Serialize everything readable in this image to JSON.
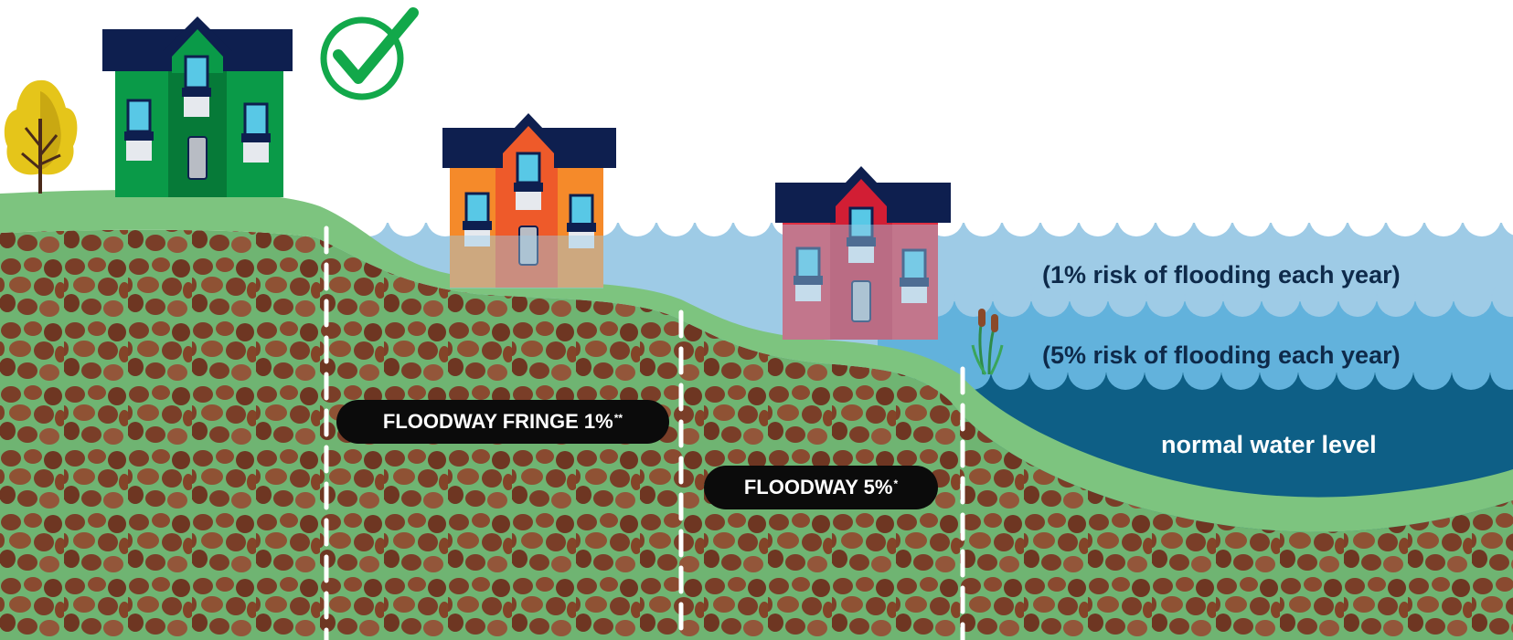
{
  "labels": {
    "floodway_fringe": "FLOODWAY FRINGE 1%",
    "floodway_fringe_mark": "**",
    "floodway": "FLOODWAY 5%",
    "floodway_mark": "*",
    "risk_1pct": "(1% risk of flooding each year)",
    "risk_5pct": "(5% risk of flooding each year)",
    "normal_water": "normal water level"
  },
  "houses": [
    {
      "name": "safe-house",
      "color": "#0a9a48",
      "state": "safe"
    },
    {
      "name": "fringe-house",
      "color": "#f58a2a",
      "state": "partially flooded"
    },
    {
      "name": "floodway-house",
      "color": "#e03042",
      "state": "flooded"
    }
  ],
  "icons": [
    "checkmark-icon",
    "tree-icon",
    "cattail-icon"
  ],
  "colors": {
    "soil": "#7a3e28",
    "grass": "#7dc47f",
    "water_100yr": "#9ecbe6",
    "water_20yr": "#62b2dc",
    "water_normal": "#0e5f86",
    "roof": "#0e1f4f",
    "check": "#12a84a"
  }
}
